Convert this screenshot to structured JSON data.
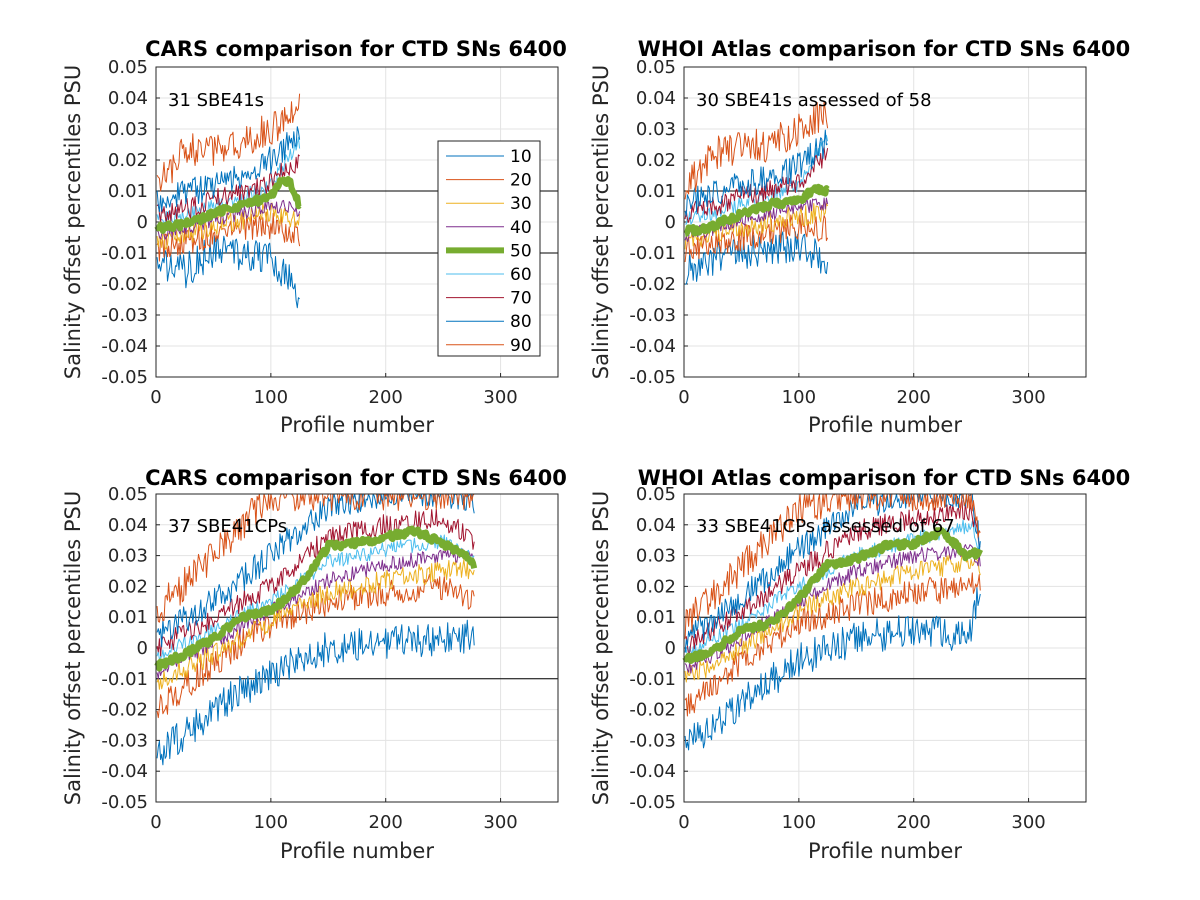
{
  "figure": {
    "percentile_colors": {
      "10": "#0072bd",
      "20": "#d95319",
      "30": "#edb120",
      "40": "#7e2f8e",
      "50": "#77ac30",
      "60": "#4dbeee",
      "70": "#a2142f",
      "80": "#0072bd",
      "90": "#d95319"
    },
    "reference_lines": [
      0.01,
      -0.01
    ]
  },
  "chart_data": [
    {
      "type": "line",
      "title": "CARS comparison for CTD SNs 6400",
      "xlabel": "Profile number",
      "ylabel": "Salinity offset percentiles PSU",
      "annotation": "31 SBE41s",
      "xlim": [
        0,
        350
      ],
      "ylim": [
        -0.05,
        0.05
      ],
      "xticks": [
        "0",
        "100",
        "200",
        "300"
      ],
      "yticks": [
        "-0.05",
        "-0.04",
        "-0.03",
        "-0.02",
        "-0.01",
        "0",
        "0.01",
        "0.02",
        "0.03",
        "0.04",
        "0.05"
      ],
      "grid": true,
      "legend": {
        "placement": "inside-right",
        "entries": [
          "10",
          "20",
          "30",
          "40",
          "50",
          "60",
          "70",
          "80",
          "90"
        ]
      },
      "x_max": 125,
      "series": [
        {
          "name": "10",
          "x": [
            1,
            25,
            50,
            75,
            100,
            125
          ],
          "y": [
            -0.013,
            -0.016,
            -0.009,
            -0.01,
            -0.011,
            -0.024
          ]
        },
        {
          "name": "20",
          "x": [
            1,
            25,
            50,
            75,
            100,
            125
          ],
          "y": [
            -0.009,
            -0.006,
            -0.004,
            -0.002,
            -0.001,
            -0.004
          ]
        },
        {
          "name": "30",
          "x": [
            1,
            25,
            50,
            75,
            100,
            125
          ],
          "y": [
            -0.006,
            -0.004,
            -0.001,
            0.001,
            0.003,
            0.001
          ]
        },
        {
          "name": "40",
          "x": [
            1,
            25,
            50,
            75,
            100,
            125
          ],
          "y": [
            -0.004,
            -0.002,
            0.001,
            0.003,
            0.005,
            0.004
          ]
        },
        {
          "name": "50",
          "x": [
            1,
            20,
            40,
            60,
            80,
            100,
            110,
            118,
            125
          ],
          "y": [
            -0.002,
            -0.001,
            0.001,
            0.004,
            0.006,
            0.008,
            0.014,
            0.012,
            0.005
          ]
        },
        {
          "name": "60",
          "x": [
            1,
            25,
            50,
            75,
            100,
            125
          ],
          "y": [
            0.001,
            0.002,
            0.005,
            0.008,
            0.012,
            0.026
          ]
        },
        {
          "name": "70",
          "x": [
            1,
            25,
            50,
            75,
            100,
            125
          ],
          "y": [
            0.003,
            0.004,
            0.007,
            0.009,
            0.013,
            0.02
          ]
        },
        {
          "name": "80",
          "x": [
            1,
            25,
            50,
            75,
            100,
            125
          ],
          "y": [
            0.007,
            0.009,
            0.012,
            0.015,
            0.02,
            0.028
          ]
        },
        {
          "name": "90",
          "x": [
            1,
            25,
            50,
            75,
            100,
            125
          ],
          "y": [
            0.011,
            0.024,
            0.022,
            0.026,
            0.03,
            0.036
          ]
        }
      ]
    },
    {
      "type": "line",
      "title": "WHOI Atlas comparison for CTD SNs 6400",
      "xlabel": "Profile number",
      "ylabel": "Salinity offset percentiles PSU",
      "annotation": "30 SBE41s assessed of 58",
      "xlim": [
        0,
        350
      ],
      "ylim": [
        -0.05,
        0.05
      ],
      "xticks": [
        "0",
        "100",
        "200",
        "300"
      ],
      "yticks": [
        "-0.05",
        "-0.04",
        "-0.03",
        "-0.02",
        "-0.01",
        "0",
        "0.01",
        "0.02",
        "0.03",
        "0.04",
        "0.05"
      ],
      "grid": true,
      "x_max": 125,
      "series": [
        {
          "name": "10",
          "x": [
            1,
            25,
            50,
            75,
            100,
            125
          ],
          "y": [
            -0.015,
            -0.012,
            -0.01,
            -0.008,
            -0.008,
            -0.013
          ]
        },
        {
          "name": "20",
          "x": [
            1,
            25,
            50,
            75,
            100,
            125
          ],
          "y": [
            -0.009,
            -0.007,
            -0.005,
            -0.003,
            -0.001,
            -0.002
          ]
        },
        {
          "name": "30",
          "x": [
            1,
            25,
            50,
            75,
            100,
            125
          ],
          "y": [
            -0.006,
            -0.004,
            -0.002,
            0.0,
            0.002,
            0.003
          ]
        },
        {
          "name": "40",
          "x": [
            1,
            25,
            50,
            75,
            100,
            125
          ],
          "y": [
            -0.004,
            -0.002,
            0.001,
            0.003,
            0.005,
            0.006
          ]
        },
        {
          "name": "50",
          "x": [
            1,
            20,
            40,
            60,
            80,
            100,
            115,
            125
          ],
          "y": [
            -0.003,
            -0.002,
            0.001,
            0.004,
            0.006,
            0.007,
            0.011,
            0.01
          ]
        },
        {
          "name": "60",
          "x": [
            1,
            25,
            50,
            75,
            100,
            125
          ],
          "y": [
            0.001,
            0.003,
            0.006,
            0.009,
            0.012,
            0.028
          ]
        },
        {
          "name": "70",
          "x": [
            1,
            25,
            50,
            75,
            100,
            125
          ],
          "y": [
            0.003,
            0.005,
            0.008,
            0.01,
            0.013,
            0.022
          ]
        },
        {
          "name": "80",
          "x": [
            1,
            25,
            50,
            75,
            100,
            125
          ],
          "y": [
            0.006,
            0.009,
            0.012,
            0.014,
            0.018,
            0.026
          ]
        },
        {
          "name": "90",
          "x": [
            1,
            25,
            50,
            75,
            100,
            125
          ],
          "y": [
            0.01,
            0.022,
            0.024,
            0.025,
            0.03,
            0.035
          ]
        }
      ]
    },
    {
      "type": "line",
      "title": "CARS comparison for CTD SNs 6400",
      "xlabel": "Profile number",
      "ylabel": "Salinity offset percentiles PSU",
      "annotation": "37 SBE41CPs",
      "xlim": [
        0,
        350
      ],
      "ylim": [
        -0.05,
        0.05
      ],
      "xticks": [
        "0",
        "100",
        "200",
        "300"
      ],
      "yticks": [
        "-0.05",
        "-0.04",
        "-0.03",
        "-0.02",
        "-0.01",
        "0",
        "0.01",
        "0.02",
        "0.03",
        "0.04",
        "0.05"
      ],
      "grid": true,
      "x_max": 277,
      "series": [
        {
          "name": "10",
          "x": [
            1,
            50,
            100,
            150,
            200,
            250,
            277
          ],
          "y": [
            -0.035,
            -0.02,
            -0.008,
            0.0,
            0.002,
            0.003,
            0.004
          ]
        },
        {
          "name": "20",
          "x": [
            1,
            50,
            100,
            150,
            200,
            250,
            277
          ],
          "y": [
            -0.02,
            -0.005,
            0.008,
            0.015,
            0.018,
            0.02,
            0.014
          ]
        },
        {
          "name": "30",
          "x": [
            1,
            50,
            100,
            150,
            200,
            250,
            277
          ],
          "y": [
            -0.011,
            -0.002,
            0.009,
            0.018,
            0.022,
            0.025,
            0.026
          ]
        },
        {
          "name": "40",
          "x": [
            1,
            50,
            100,
            150,
            200,
            250,
            277
          ],
          "y": [
            -0.008,
            0.002,
            0.012,
            0.022,
            0.027,
            0.03,
            0.03
          ]
        },
        {
          "name": "50",
          "x": [
            1,
            25,
            50,
            75,
            100,
            125,
            150,
            175,
            200,
            225,
            250,
            270,
            277
          ],
          "y": [
            -0.006,
            -0.002,
            0.003,
            0.01,
            0.012,
            0.02,
            0.033,
            0.034,
            0.036,
            0.038,
            0.034,
            0.03,
            0.027
          ]
        },
        {
          "name": "60",
          "x": [
            1,
            50,
            100,
            150,
            200,
            250,
            277
          ],
          "y": [
            -0.003,
            0.006,
            0.015,
            0.028,
            0.032,
            0.035,
            0.028
          ]
        },
        {
          "name": "70",
          "x": [
            1,
            50,
            100,
            150,
            200,
            250,
            277
          ],
          "y": [
            0.0,
            0.01,
            0.02,
            0.036,
            0.04,
            0.042,
            0.035
          ]
        },
        {
          "name": "80",
          "x": [
            1,
            50,
            100,
            150,
            200,
            250,
            277
          ],
          "y": [
            0.004,
            0.015,
            0.03,
            0.046,
            0.05,
            0.05,
            0.048
          ]
        },
        {
          "name": "90",
          "x": [
            1,
            50,
            100,
            150,
            200,
            250,
            277
          ],
          "y": [
            0.012,
            0.03,
            0.05,
            0.05,
            0.05,
            0.05,
            0.05
          ]
        }
      ]
    },
    {
      "type": "line",
      "title": "WHOI Atlas comparison for CTD SNs 6400",
      "xlabel": "Profile number",
      "ylabel": "Salinity offset percentiles PSU",
      "annotation": "33 SBE41CPs assessed of 67",
      "xlim": [
        0,
        350
      ],
      "ylim": [
        -0.05,
        0.05
      ],
      "xticks": [
        "0",
        "100",
        "200",
        "300"
      ],
      "yticks": [
        "-0.05",
        "-0.04",
        "-0.03",
        "-0.02",
        "-0.01",
        "0",
        "0.01",
        "0.02",
        "0.03",
        "0.04",
        "0.05"
      ],
      "grid": true,
      "x_max": 258,
      "series": [
        {
          "name": "10",
          "x": [
            1,
            50,
            100,
            150,
            200,
            250,
            258
          ],
          "y": [
            -0.032,
            -0.018,
            -0.004,
            0.003,
            0.006,
            0.004,
            0.022
          ]
        },
        {
          "name": "20",
          "x": [
            1,
            50,
            100,
            150,
            200,
            250,
            258
          ],
          "y": [
            -0.02,
            -0.004,
            0.008,
            0.014,
            0.018,
            0.02,
            0.022
          ]
        },
        {
          "name": "30",
          "x": [
            1,
            50,
            100,
            150,
            200,
            250,
            258
          ],
          "y": [
            -0.01,
            0.0,
            0.012,
            0.02,
            0.025,
            0.028,
            0.026
          ]
        },
        {
          "name": "40",
          "x": [
            1,
            50,
            100,
            150,
            200,
            250,
            258
          ],
          "y": [
            -0.007,
            0.003,
            0.015,
            0.025,
            0.03,
            0.032,
            0.028
          ]
        },
        {
          "name": "50",
          "x": [
            1,
            25,
            50,
            75,
            100,
            125,
            150,
            175,
            200,
            225,
            245,
            258
          ],
          "y": [
            -0.004,
            -0.001,
            0.006,
            0.008,
            0.016,
            0.027,
            0.029,
            0.033,
            0.034,
            0.038,
            0.03,
            0.031
          ]
        },
        {
          "name": "60",
          "x": [
            1,
            50,
            100,
            150,
            200,
            250,
            258
          ],
          "y": [
            -0.002,
            0.008,
            0.02,
            0.03,
            0.035,
            0.04,
            0.03
          ]
        },
        {
          "name": "70",
          "x": [
            1,
            50,
            100,
            150,
            200,
            250,
            258
          ],
          "y": [
            0.0,
            0.012,
            0.025,
            0.038,
            0.042,
            0.045,
            0.032
          ]
        },
        {
          "name": "80",
          "x": [
            1,
            50,
            100,
            150,
            200,
            250,
            258
          ],
          "y": [
            0.003,
            0.016,
            0.032,
            0.046,
            0.05,
            0.05,
            0.033
          ]
        },
        {
          "name": "90",
          "x": [
            1,
            50,
            100,
            150,
            200,
            250,
            258
          ],
          "y": [
            0.008,
            0.026,
            0.045,
            0.05,
            0.05,
            0.05,
            0.035
          ]
        }
      ]
    }
  ]
}
